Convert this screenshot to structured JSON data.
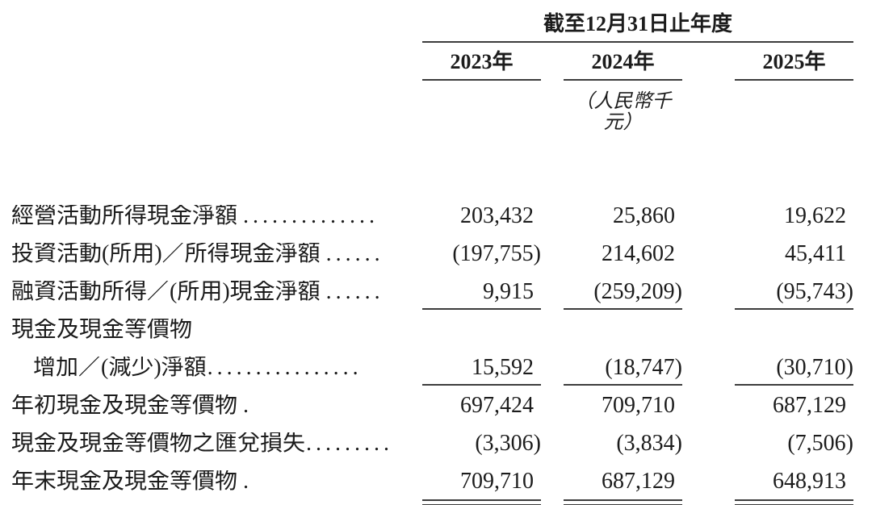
{
  "colors": {
    "text": "#1c1c1c",
    "rule": "#3c3c3c",
    "background": "#ffffff"
  },
  "table": {
    "header": {
      "period_title": "截至12月31日止年度",
      "columns": [
        "2023年",
        "2024年",
        "2025年"
      ],
      "unit_note": "（人民幣千元）"
    },
    "rows": [
      {
        "label": "經營活動所得現金淨額",
        "dots": "..............",
        "values": [
          "203,432",
          "25,860",
          "19,622"
        ]
      },
      {
        "label": "投資活動(所用)／所得現金淨額",
        "dots": "......",
        "values": [
          "(197,755)",
          "214,602",
          "45,411"
        ]
      },
      {
        "label": "融資活動所得／(所用)現金淨額",
        "dots": "......",
        "values": [
          "9,915",
          "(259,209)",
          "(95,743)"
        ]
      },
      {
        "label": "現金及現金等價物",
        "dots": "",
        "values": [
          "",
          "",
          ""
        ]
      },
      {
        "label": "增加／(減少)淨額",
        "dots": "................",
        "values": [
          "15,592",
          "(18,747)",
          "(30,710)"
        ]
      },
      {
        "label": "年初現金及現金等價物",
        "dots": ".",
        "values": [
          "697,424",
          "709,710",
          "687,129"
        ]
      },
      {
        "label": "現金及現金等價物之匯兌損失",
        "dots": ".........",
        "values": [
          "(3,306)",
          "(3,834)",
          "(7,506)"
        ]
      },
      {
        "label": "年末現金及現金等價物",
        "dots": ".",
        "values": [
          "709,710",
          "687,129",
          "648,913"
        ]
      }
    ]
  }
}
